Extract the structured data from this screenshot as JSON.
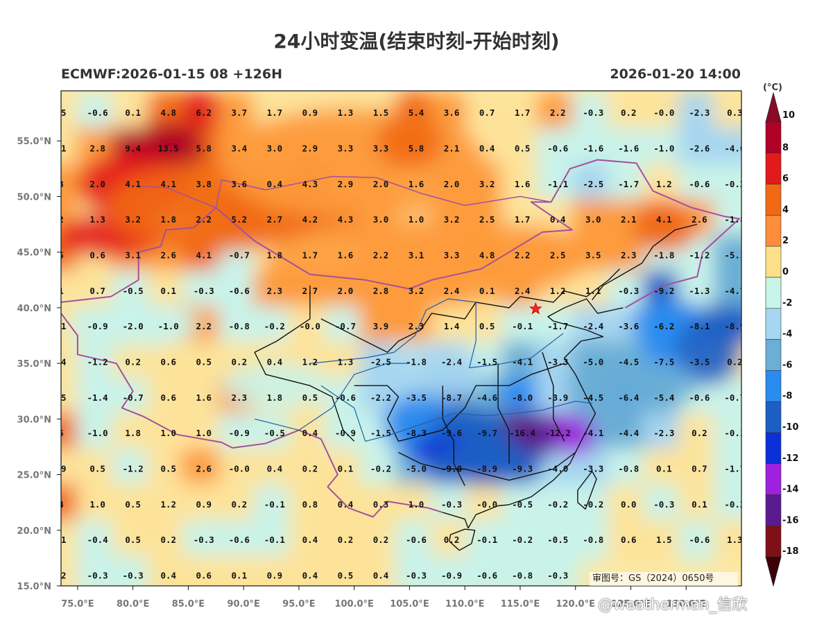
{
  "title": "24小时变温(结束时刻-开始时刻)",
  "model_label": "ECMWF:2026-01-15 08 +126H",
  "valid_time": "2026-01-20 14:00",
  "colorbar": {
    "unit": "(°C)",
    "levels": [
      "10",
      "8",
      "6",
      "4",
      "2",
      "0",
      "-2",
      "-4",
      "-6",
      "-8",
      "-10",
      "-12",
      "-14",
      "-16",
      "-18"
    ],
    "colors": [
      "#b10026",
      "#e31a1c",
      "#f16913",
      "#fd8d3c",
      "#ffe08a",
      "#ffffff",
      "#c7f5e8",
      "#a6d6f0",
      "#6baed6",
      "#2b8cf0",
      "#1c5fc4",
      "#0b2fd8",
      "#a020e0",
      "#5a1b90",
      "#7f1018"
    ]
  },
  "axes": {
    "lat_labels": [
      "55.0°N",
      "50.0°N",
      "45.0°N",
      "40.0°N",
      "35.0°N",
      "30.0°N",
      "25.0°N",
      "20.0°N",
      "15.0°N"
    ],
    "lat_values": [
      55,
      50,
      45,
      40,
      35,
      30,
      25,
      20,
      15
    ],
    "lon_labels": [
      "75.0°E",
      "80.0°E",
      "85.0°E",
      "90.0°E",
      "95.0°E",
      "100.0°E",
      "105.0°E",
      "110.0°E",
      "115.0°E",
      "120.0°E",
      "125.0°E",
      "130.0°E"
    ],
    "lon_values": [
      75,
      80,
      85,
      90,
      95,
      100,
      105,
      110,
      115,
      120,
      125,
      130
    ],
    "lon_range": [
      73.5,
      135
    ],
    "lat_range": [
      15,
      59.5
    ]
  },
  "grid_values": {
    "lons": [
      73.5,
      76.8,
      80,
      83.2,
      86.4,
      89.6,
      92.8,
      96,
      99.2,
      102.4,
      105.6,
      108.8,
      112,
      115.2,
      118.4,
      121.6,
      124.8,
      128,
      131.2,
      134.4
    ],
    "lats": [
      57.5,
      54.3,
      51.1,
      47.9,
      44.7,
      41.5,
      38.3,
      35.1,
      31.9,
      28.7,
      25.5,
      22.3,
      19.1,
      15.9
    ],
    "rows": [
      [
        ".5",
        "-0.6",
        "0.1",
        "4.8",
        "6.2",
        "3.7",
        "1.7",
        "0.9",
        "1.3",
        "1.5",
        "5.4",
        "3.6",
        "0.7",
        "1.7",
        "2.2",
        "-0.3",
        "0.2",
        "-0.0",
        "-2.3",
        "0.3"
      ],
      [
        ".1",
        "2.8",
        "9.4",
        "13.5",
        "5.8",
        "3.4",
        "3.0",
        "2.9",
        "3.3",
        "3.3",
        "5.8",
        "2.1",
        "0.4",
        "0.5",
        "-0.6",
        "-1.6",
        "-1.6",
        "-1.0",
        "-2.6",
        "-4.0"
      ],
      [
        "3",
        "2.0",
        "4.1",
        "4.1",
        "3.8",
        "3.6",
        "0.4",
        "4.3",
        "2.9",
        "2.0",
        "1.6",
        "2.0",
        "3.2",
        "1.6",
        "-1.1",
        "-2.5",
        "-1.7",
        "1.2",
        "-0.6",
        "-0.2"
      ],
      [
        "2",
        "1.3",
        "3.2",
        "1.8",
        "2.2",
        "5.2",
        "2.7",
        "4.2",
        "4.3",
        "3.0",
        "1.0",
        "3.2",
        "2.5",
        "1.7",
        "0.4",
        "3.0",
        "2.1",
        "4.1",
        "2.6",
        "-1.8"
      ],
      [
        "5",
        "0.6",
        "3.1",
        "2.6",
        "4.1",
        "-0.7",
        "1.8",
        "1.7",
        "1.6",
        "2.2",
        "3.1",
        "3.3",
        "4.8",
        "2.2",
        "2.5",
        "3.5",
        "2.3",
        "-1.8",
        "-1.2",
        "-5.1"
      ],
      [
        "1",
        "0.7",
        "-0.5",
        "0.1",
        "-0.3",
        "-0.6",
        "2.3",
        "2.7",
        "2.0",
        "2.8",
        "3.2",
        "2.4",
        "0.1",
        "2.4",
        "1.2",
        "1.1",
        "-0.3",
        "-9.2",
        "-1.3",
        "-4.7"
      ],
      [
        ".1",
        "-0.9",
        "-2.0",
        "-1.0",
        "2.2",
        "-0.8",
        "-0.2",
        "-0.0",
        "-0.7",
        "3.9",
        "2.3",
        "1.4",
        "0.5",
        "-0.1",
        "-1.7",
        "-2.4",
        "-3.6",
        "-6.2",
        "-8.1",
        "-8.9"
      ],
      [
        ".4",
        "-1.2",
        "0.2",
        "0.6",
        "0.5",
        "0.2",
        "0.4",
        "1.2",
        "1.3",
        "-2.5",
        "-1.8",
        "-2.4",
        "-1.5",
        "-4.1",
        "-3.3",
        "-5.0",
        "-4.5",
        "-7.5",
        "-3.5",
        "0.2"
      ],
      [
        ".5",
        "-1.4",
        "-0.7",
        "0.6",
        "1.6",
        "2.3",
        "1.8",
        "0.5",
        "-0.6",
        "-2.2",
        "-3.5",
        "-8.7",
        "-4.6",
        "-8.0",
        "-3.9",
        "-4.5",
        "-6.4",
        "-5.4",
        "-0.6",
        "-0.7"
      ],
      [
        "5",
        "-1.0",
        "1.8",
        "1.0",
        "1.0",
        "-0.9",
        "-0.5",
        "0.4",
        "-0.9",
        "-1.5",
        "-8.3",
        "-9.6",
        "-9.7",
        "-16.4",
        "-12.2",
        "-4.1",
        "-4.4",
        "-2.3",
        "0.2",
        "-0.1"
      ],
      [
        ".9",
        "0.5",
        "-1.2",
        "0.5",
        "2.6",
        "-0.0",
        "0.4",
        "0.2",
        "0.1",
        "-0.2",
        "-5.0",
        "-9.0",
        "-8.9",
        "-9.3",
        "-4.0",
        "-3.3",
        "-0.8",
        "0.1",
        "0.7",
        "-1.7"
      ],
      [
        "4",
        "1.0",
        "0.5",
        "1.2",
        "0.9",
        "0.2",
        "-0.1",
        "0.8",
        "0.4",
        "0.3",
        "1.0",
        "-0.3",
        "-0.0",
        "-0.5",
        "-0.2",
        "-0.2",
        "0.0",
        "-0.3",
        "0.1",
        "-0.2"
      ],
      [
        ".1",
        "-0.4",
        "0.5",
        "0.2",
        "-0.3",
        "-0.6",
        "-0.1",
        "0.4",
        "0.2",
        "0.2",
        "-0.6",
        "0.2",
        "-0.1",
        "-0.2",
        "-0.5",
        "-0.8",
        "0.6",
        "1.5",
        "-0.6",
        "1.3"
      ],
      [
        ".2",
        "-0.3",
        "-0.3",
        "0.4",
        "0.6",
        "0.1",
        "0.9",
        "0.4",
        "0.5",
        "0.4",
        "-0.3",
        "-0.9",
        "-0.6",
        "-0.8",
        "-0.3",
        "",
        "",
        "",
        "",
        ""
      ]
    ]
  },
  "field_blobs": [
    {
      "lon": 83,
      "lat": 54.5,
      "value": 13.5,
      "rx": 3.6,
      "ry": 2.2
    },
    {
      "lon": 80,
      "lat": 51,
      "value": 6,
      "rx": 5,
      "ry": 3
    },
    {
      "lon": 78,
      "lat": 46.5,
      "value": 6,
      "rx": 5,
      "ry": 2
    },
    {
      "lon": 87.5,
      "lat": 49,
      "value": 4.5,
      "rx": 10,
      "ry": 4
    },
    {
      "lon": 100,
      "lat": 53,
      "value": 3,
      "rx": 12,
      "ry": 5
    },
    {
      "lon": 105,
      "lat": 55,
      "value": 5.5,
      "rx": 3,
      "ry": 2.5
    },
    {
      "lon": 105,
      "lat": 44,
      "value": 3,
      "rx": 13,
      "ry": 4
    },
    {
      "lon": 115,
      "lat": 44.5,
      "value": 3,
      "rx": 6,
      "ry": 3
    },
    {
      "lon": 128,
      "lat": 47,
      "value": 4.5,
      "rx": 3,
      "ry": 2
    },
    {
      "lon": 80,
      "lat": 38.5,
      "value": -2,
      "rx": 6,
      "ry": 2
    },
    {
      "lon": 107,
      "lat": 34,
      "value": -3,
      "rx": 5,
      "ry": 2.5
    },
    {
      "lon": 128.5,
      "lat": 38.5,
      "value": -7,
      "rx": 3.5,
      "ry": 2.3
    },
    {
      "lon": 132,
      "lat": 36,
      "value": -8.5,
      "rx": 3,
      "ry": 3
    },
    {
      "lon": 125,
      "lat": 33,
      "value": -5,
      "rx": 6,
      "ry": 2.5
    },
    {
      "lon": 106,
      "lat": 29.5,
      "value": -7,
      "rx": 3.5,
      "ry": 2.8
    },
    {
      "lon": 110.5,
      "lat": 28.5,
      "value": -9.5,
      "rx": 4,
      "ry": 2.5
    },
    {
      "lon": 108,
      "lat": 27,
      "value": -12,
      "rx": 3,
      "ry": 1.5
    },
    {
      "lon": 116.5,
      "lat": 28.5,
      "value": -16,
      "rx": 2.5,
      "ry": 2
    },
    {
      "lon": 120,
      "lat": 28.5,
      "value": -13,
      "rx": 1.8,
      "ry": 1.8
    },
    {
      "lon": 112,
      "lat": 26,
      "value": -9,
      "rx": 5,
      "ry": 2
    },
    {
      "lon": 93,
      "lat": 33,
      "value": -1,
      "rx": 5,
      "ry": 2
    },
    {
      "lon": 86,
      "lat": 26,
      "value": 2.5,
      "rx": 2,
      "ry": 1
    }
  ],
  "marker": {
    "lon": 116.4,
    "lat": 39.9,
    "name": "Beijing"
  },
  "approval_text": "审图号：GS（2024）0650号",
  "watermark": "@weatherman_信欣"
}
